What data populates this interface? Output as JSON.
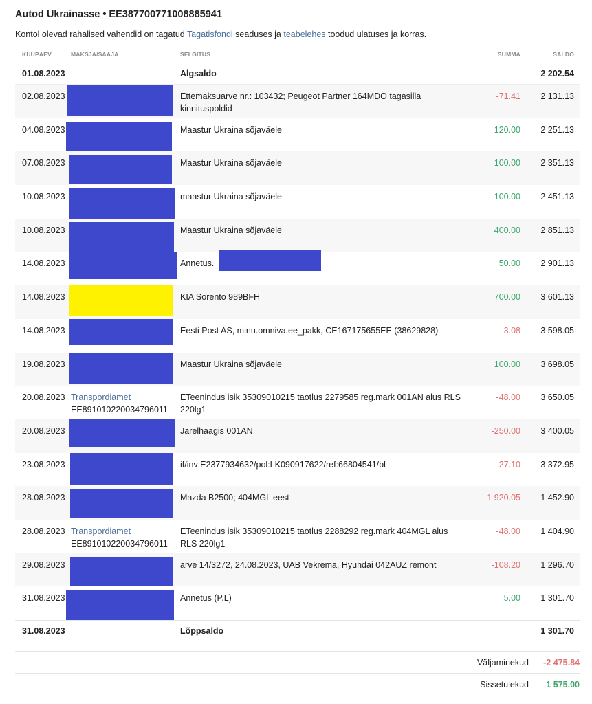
{
  "title": "Autod Ukrainasse • EE387700771008885941",
  "note": {
    "pre": "Kontol olevad rahalised vahendid on tagatud ",
    "link1": "Tagatisfondi",
    "mid": " seaduses ja ",
    "link2": "teabelehes",
    "post": " toodud ulatuses ja korras."
  },
  "columns": {
    "date": "KUUPÄEV",
    "payer": "MAKSJA/SAAJA",
    "desc": "SELGITUS",
    "amount": "SUMMA",
    "balance": "SALDO"
  },
  "opening": {
    "date": "01.08.2023",
    "label": "Algsaldo",
    "balance": "2 202.54"
  },
  "rows": [
    {
      "date": "02.08.2023",
      "payer": "",
      "desc": "Ettemaksuarve nr.: 103432; Peugeot Partner 164MDO tagasilla kinnituspoldid",
      "amount": "-71.41",
      "balance": "2 131.13",
      "redact": "blue"
    },
    {
      "date": "04.08.2023",
      "payer": "",
      "desc": "Maastur Ukraina sõjaväele",
      "amount": "120.00",
      "balance": "2 251.13",
      "redact": "blue"
    },
    {
      "date": "07.08.2023",
      "payer": "",
      "desc": "Maastur Ukraina sõjaväele",
      "amount": "100.00",
      "balance": "2 351.13",
      "redact": "blue"
    },
    {
      "date": "10.08.2023",
      "payer": "",
      "desc": "maastur Ukraina sõjaväele",
      "amount": "100.00",
      "balance": "2 451.13",
      "redact": "blue"
    },
    {
      "date": "10.08.2023",
      "payer": "",
      "desc": "Maastur Ukraina sõjaväele",
      "amount": "400.00",
      "balance": "2 851.13",
      "redact": "blue"
    },
    {
      "date": "14.08.2023",
      "payer": "",
      "desc": "Annetus.",
      "amount": "50.00",
      "balance": "2 901.13",
      "redact": "blue"
    },
    {
      "date": "14.08.2023",
      "payer": "",
      "desc": "KIA Sorento 989BFH",
      "amount": "700.00",
      "balance": "3 601.13",
      "redact": "yellow"
    },
    {
      "date": "14.08.2023",
      "payer": "",
      "desc": "Eesti Post AS, minu.omniva.ee_pakk, CE167175655EE (38629828)",
      "amount": "-3.08",
      "balance": "3 598.05",
      "redact": "blue"
    },
    {
      "date": "19.08.2023",
      "payer": "",
      "desc": "Maastur Ukraina sõjaväele",
      "amount": "100.00",
      "balance": "3 698.05",
      "redact": "blue"
    },
    {
      "date": "20.08.2023",
      "payer": "Transpordiamet",
      "iban": "EE891010220034796011",
      "desc": "ETeenindus isik 35309010215 taotlus 2279585 reg.mark 001AN alus RLS 220lg1",
      "amount": "-48.00",
      "balance": "3 650.05",
      "redact": ""
    },
    {
      "date": "20.08.2023",
      "payer": "",
      "desc": "Järelhaagis 001AN",
      "amount": "-250.00",
      "balance": "3 400.05",
      "redact": "blue"
    },
    {
      "date": "23.08.2023",
      "payer": "",
      "desc": "if/inv:E2377934632/pol:LK090917622/ref:66804541/bl",
      "amount": "-27.10",
      "balance": "3 372.95",
      "redact": "blue"
    },
    {
      "date": "28.08.2023",
      "payer": "",
      "desc": "Mazda B2500; 404MGL eest",
      "amount": "-1 920.05",
      "balance": "1 452.90",
      "redact": "blue"
    },
    {
      "date": "28.08.2023",
      "payer": "Transpordiamet",
      "iban": "EE891010220034796011",
      "desc": "ETeenindus isik 35309010215 taotlus 2288292 reg.mark 404MGL alus RLS 220lg1",
      "amount": "-48.00",
      "balance": "1 404.90",
      "redact": ""
    },
    {
      "date": "29.08.2023",
      "payer": "",
      "desc": "arve 14/3272, 24.08.2023, UAB Vekrema, Hyundai 042AUZ remont",
      "amount": "-108.20",
      "balance": "1 296.70",
      "redact": "blue"
    },
    {
      "date": "31.08.2023",
      "payer": "",
      "desc": "Annetus (P.L)",
      "amount": "5.00",
      "balance": "1 301.70",
      "redact": "blue"
    }
  ],
  "closing": {
    "date": "31.08.2023",
    "label": "Lõppsaldo",
    "balance": "1 301.70"
  },
  "totals": {
    "out_label": "Väljaminekud",
    "out": "-2 475.84",
    "in_label": "Sissetulekud",
    "in": "1 575.00"
  },
  "colors": {
    "redact_blue": "#3d48cc",
    "redact_yellow": "#fff200",
    "negative": "#e07070",
    "positive": "#3aa76d",
    "link": "#4a6f9c"
  }
}
